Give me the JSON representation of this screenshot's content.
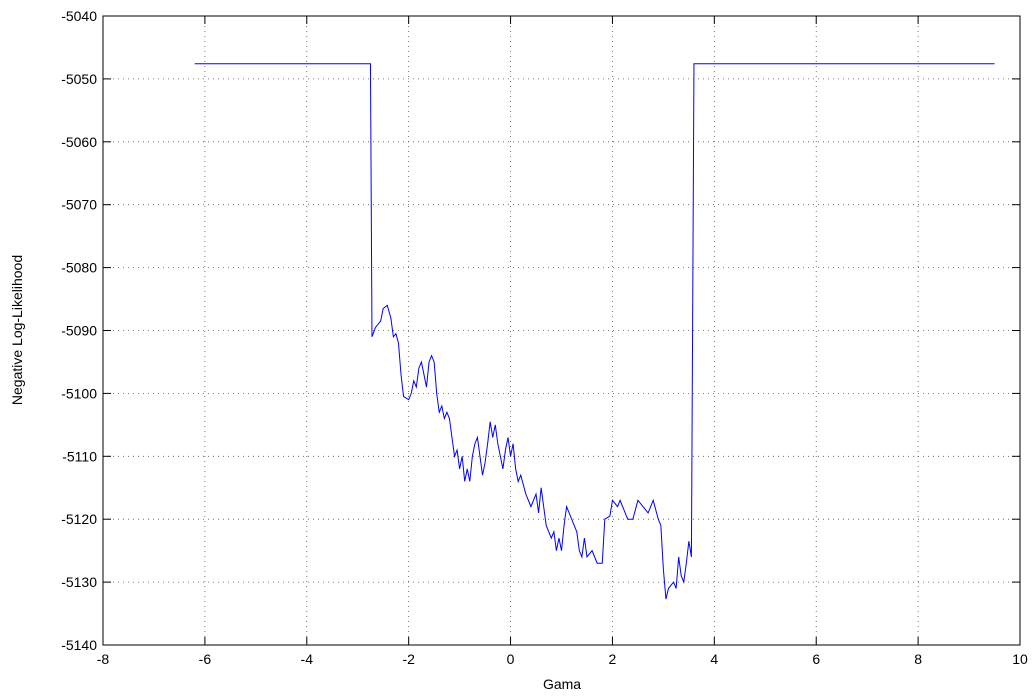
{
  "chart_data": {
    "type": "line",
    "xlabel": "Gama",
    "ylabel": "Negative Log-Likelihood",
    "xlim": [
      -8,
      10
    ],
    "xticks": [
      -8,
      -6,
      -4,
      -2,
      0,
      2,
      4,
      6,
      8,
      10
    ],
    "ylim": [
      -5140,
      -5040
    ],
    "yticks": [
      -5140,
      -5130,
      -5120,
      -5110,
      -5100,
      -5090,
      -5080,
      -5070,
      -5060,
      -5050,
      -5040
    ],
    "grid": true,
    "x": [
      -6.2,
      -2.75,
      -2.72,
      -2.65,
      -2.55,
      -2.5,
      -2.42,
      -2.35,
      -2.3,
      -2.25,
      -2.2,
      -2.15,
      -2.1,
      -2.0,
      -1.95,
      -1.9,
      -1.85,
      -1.8,
      -1.75,
      -1.7,
      -1.65,
      -1.6,
      -1.55,
      -1.5,
      -1.45,
      -1.4,
      -1.35,
      -1.3,
      -1.25,
      -1.2,
      -1.15,
      -1.1,
      -1.05,
      -1.0,
      -0.95,
      -0.9,
      -0.85,
      -0.8,
      -0.75,
      -0.7,
      -0.65,
      -0.6,
      -0.55,
      -0.5,
      -0.45,
      -0.4,
      -0.35,
      -0.3,
      -0.25,
      -0.2,
      -0.15,
      -0.1,
      -0.05,
      0.0,
      0.05,
      0.1,
      0.15,
      0.2,
      0.3,
      0.4,
      0.5,
      0.55,
      0.6,
      0.7,
      0.8,
      0.85,
      0.9,
      0.95,
      1.0,
      1.05,
      1.1,
      1.2,
      1.3,
      1.35,
      1.4,
      1.45,
      1.5,
      1.6,
      1.7,
      1.8,
      1.85,
      1.95,
      2.0,
      2.1,
      2.15,
      2.3,
      2.4,
      2.5,
      2.6,
      2.7,
      2.8,
      2.9,
      2.95,
      3.0,
      3.05,
      3.1,
      3.2,
      3.25,
      3.3,
      3.35,
      3.4,
      3.45,
      3.5,
      3.55,
      3.6,
      9.5
    ],
    "series": [
      {
        "color": "#0000ff",
        "values": [
          -5047.6,
          -5047.6,
          -5091,
          -5089.5,
          -5088.5,
          -5086.5,
          -5086,
          -5088,
          -5091,
          -5090.5,
          -5092,
          -5097,
          -5100.5,
          -5101,
          -5100,
          -5098,
          -5099,
          -5096,
          -5095,
          -5097,
          -5099,
          -5095,
          -5094,
          -5095,
          -5100,
          -5103,
          -5102,
          -5104,
          -5103,
          -5104,
          -5107,
          -5110,
          -5109,
          -5112,
          -5110,
          -5114,
          -5112,
          -5114,
          -5110,
          -5108,
          -5107,
          -5110,
          -5113,
          -5111,
          -5108,
          -5104.5,
          -5107,
          -5105,
          -5108,
          -5110,
          -5112,
          -5109,
          -5107,
          -5110,
          -5108,
          -5112,
          -5114,
          -5113,
          -5116,
          -5118,
          -5116,
          -5119,
          -5115,
          -5121,
          -5123,
          -5122,
          -5125,
          -5123,
          -5125,
          -5121,
          -5118,
          -5120,
          -5122,
          -5125,
          -5126,
          -5123,
          -5126,
          -5125,
          -5127,
          -5127,
          -5120,
          -5119.5,
          -5117,
          -5118,
          -5117,
          -5120,
          -5120,
          -5117,
          -5118,
          -5119,
          -5117,
          -5120,
          -5121,
          -5128,
          -5132.7,
          -5131,
          -5130,
          -5131,
          -5126,
          -5129,
          -5130,
          -5127,
          -5123.5,
          -5126,
          -5047.6,
          -5047.6
        ]
      }
    ]
  }
}
